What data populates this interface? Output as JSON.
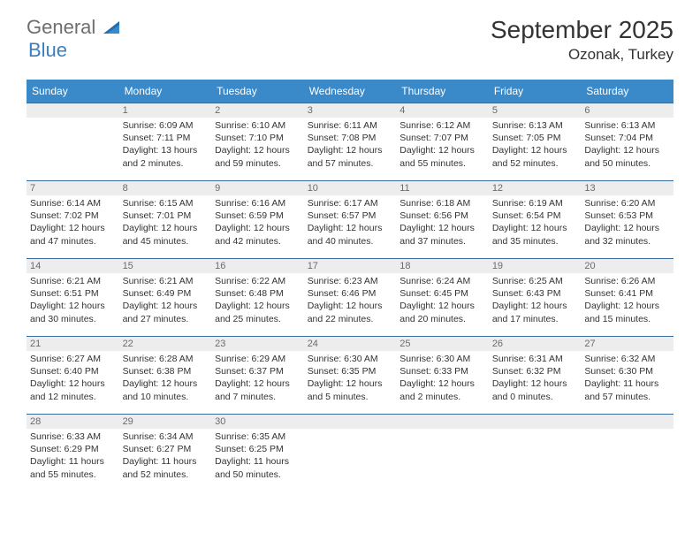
{
  "logo": {
    "part1": "General",
    "part2": "Blue"
  },
  "title": "September 2025",
  "location": "Ozonak, Turkey",
  "colors": {
    "header_bg": "#3a89c9",
    "header_text": "#ffffff",
    "row_border": "#3a6a9a",
    "daynum_bg": "#ededed",
    "daynum_text": "#6b6b6b",
    "body_text": "#333333",
    "logo_gray": "#6e6e6e",
    "logo_blue": "#3a7fbf",
    "page_bg": "#ffffff"
  },
  "typography": {
    "title_fontsize": 28,
    "location_fontsize": 17,
    "dayhead_fontsize": 12,
    "daynum_fontsize": 11,
    "cell_fontsize": 10.5,
    "font_family": "Arial"
  },
  "day_headers": [
    "Sunday",
    "Monday",
    "Tuesday",
    "Wednesday",
    "Thursday",
    "Friday",
    "Saturday"
  ],
  "weeks": [
    [
      {
        "n": "",
        "sunrise": "",
        "sunset": "",
        "daylight": ""
      },
      {
        "n": "1",
        "sunrise": "Sunrise: 6:09 AM",
        "sunset": "Sunset: 7:11 PM",
        "daylight": "Daylight: 13 hours and 2 minutes."
      },
      {
        "n": "2",
        "sunrise": "Sunrise: 6:10 AM",
        "sunset": "Sunset: 7:10 PM",
        "daylight": "Daylight: 12 hours and 59 minutes."
      },
      {
        "n": "3",
        "sunrise": "Sunrise: 6:11 AM",
        "sunset": "Sunset: 7:08 PM",
        "daylight": "Daylight: 12 hours and 57 minutes."
      },
      {
        "n": "4",
        "sunrise": "Sunrise: 6:12 AM",
        "sunset": "Sunset: 7:07 PM",
        "daylight": "Daylight: 12 hours and 55 minutes."
      },
      {
        "n": "5",
        "sunrise": "Sunrise: 6:13 AM",
        "sunset": "Sunset: 7:05 PM",
        "daylight": "Daylight: 12 hours and 52 minutes."
      },
      {
        "n": "6",
        "sunrise": "Sunrise: 6:13 AM",
        "sunset": "Sunset: 7:04 PM",
        "daylight": "Daylight: 12 hours and 50 minutes."
      }
    ],
    [
      {
        "n": "7",
        "sunrise": "Sunrise: 6:14 AM",
        "sunset": "Sunset: 7:02 PM",
        "daylight": "Daylight: 12 hours and 47 minutes."
      },
      {
        "n": "8",
        "sunrise": "Sunrise: 6:15 AM",
        "sunset": "Sunset: 7:01 PM",
        "daylight": "Daylight: 12 hours and 45 minutes."
      },
      {
        "n": "9",
        "sunrise": "Sunrise: 6:16 AM",
        "sunset": "Sunset: 6:59 PM",
        "daylight": "Daylight: 12 hours and 42 minutes."
      },
      {
        "n": "10",
        "sunrise": "Sunrise: 6:17 AM",
        "sunset": "Sunset: 6:57 PM",
        "daylight": "Daylight: 12 hours and 40 minutes."
      },
      {
        "n": "11",
        "sunrise": "Sunrise: 6:18 AM",
        "sunset": "Sunset: 6:56 PM",
        "daylight": "Daylight: 12 hours and 37 minutes."
      },
      {
        "n": "12",
        "sunrise": "Sunrise: 6:19 AM",
        "sunset": "Sunset: 6:54 PM",
        "daylight": "Daylight: 12 hours and 35 minutes."
      },
      {
        "n": "13",
        "sunrise": "Sunrise: 6:20 AM",
        "sunset": "Sunset: 6:53 PM",
        "daylight": "Daylight: 12 hours and 32 minutes."
      }
    ],
    [
      {
        "n": "14",
        "sunrise": "Sunrise: 6:21 AM",
        "sunset": "Sunset: 6:51 PM",
        "daylight": "Daylight: 12 hours and 30 minutes."
      },
      {
        "n": "15",
        "sunrise": "Sunrise: 6:21 AM",
        "sunset": "Sunset: 6:49 PM",
        "daylight": "Daylight: 12 hours and 27 minutes."
      },
      {
        "n": "16",
        "sunrise": "Sunrise: 6:22 AM",
        "sunset": "Sunset: 6:48 PM",
        "daylight": "Daylight: 12 hours and 25 minutes."
      },
      {
        "n": "17",
        "sunrise": "Sunrise: 6:23 AM",
        "sunset": "Sunset: 6:46 PM",
        "daylight": "Daylight: 12 hours and 22 minutes."
      },
      {
        "n": "18",
        "sunrise": "Sunrise: 6:24 AM",
        "sunset": "Sunset: 6:45 PM",
        "daylight": "Daylight: 12 hours and 20 minutes."
      },
      {
        "n": "19",
        "sunrise": "Sunrise: 6:25 AM",
        "sunset": "Sunset: 6:43 PM",
        "daylight": "Daylight: 12 hours and 17 minutes."
      },
      {
        "n": "20",
        "sunrise": "Sunrise: 6:26 AM",
        "sunset": "Sunset: 6:41 PM",
        "daylight": "Daylight: 12 hours and 15 minutes."
      }
    ],
    [
      {
        "n": "21",
        "sunrise": "Sunrise: 6:27 AM",
        "sunset": "Sunset: 6:40 PM",
        "daylight": "Daylight: 12 hours and 12 minutes."
      },
      {
        "n": "22",
        "sunrise": "Sunrise: 6:28 AM",
        "sunset": "Sunset: 6:38 PM",
        "daylight": "Daylight: 12 hours and 10 minutes."
      },
      {
        "n": "23",
        "sunrise": "Sunrise: 6:29 AM",
        "sunset": "Sunset: 6:37 PM",
        "daylight": "Daylight: 12 hours and 7 minutes."
      },
      {
        "n": "24",
        "sunrise": "Sunrise: 6:30 AM",
        "sunset": "Sunset: 6:35 PM",
        "daylight": "Daylight: 12 hours and 5 minutes."
      },
      {
        "n": "25",
        "sunrise": "Sunrise: 6:30 AM",
        "sunset": "Sunset: 6:33 PM",
        "daylight": "Daylight: 12 hours and 2 minutes."
      },
      {
        "n": "26",
        "sunrise": "Sunrise: 6:31 AM",
        "sunset": "Sunset: 6:32 PM",
        "daylight": "Daylight: 12 hours and 0 minutes."
      },
      {
        "n": "27",
        "sunrise": "Sunrise: 6:32 AM",
        "sunset": "Sunset: 6:30 PM",
        "daylight": "Daylight: 11 hours and 57 minutes."
      }
    ],
    [
      {
        "n": "28",
        "sunrise": "Sunrise: 6:33 AM",
        "sunset": "Sunset: 6:29 PM",
        "daylight": "Daylight: 11 hours and 55 minutes."
      },
      {
        "n": "29",
        "sunrise": "Sunrise: 6:34 AM",
        "sunset": "Sunset: 6:27 PM",
        "daylight": "Daylight: 11 hours and 52 minutes."
      },
      {
        "n": "30",
        "sunrise": "Sunrise: 6:35 AM",
        "sunset": "Sunset: 6:25 PM",
        "daylight": "Daylight: 11 hours and 50 minutes."
      },
      {
        "n": "",
        "sunrise": "",
        "sunset": "",
        "daylight": ""
      },
      {
        "n": "",
        "sunrise": "",
        "sunset": "",
        "daylight": ""
      },
      {
        "n": "",
        "sunrise": "",
        "sunset": "",
        "daylight": ""
      },
      {
        "n": "",
        "sunrise": "",
        "sunset": "",
        "daylight": ""
      }
    ]
  ]
}
